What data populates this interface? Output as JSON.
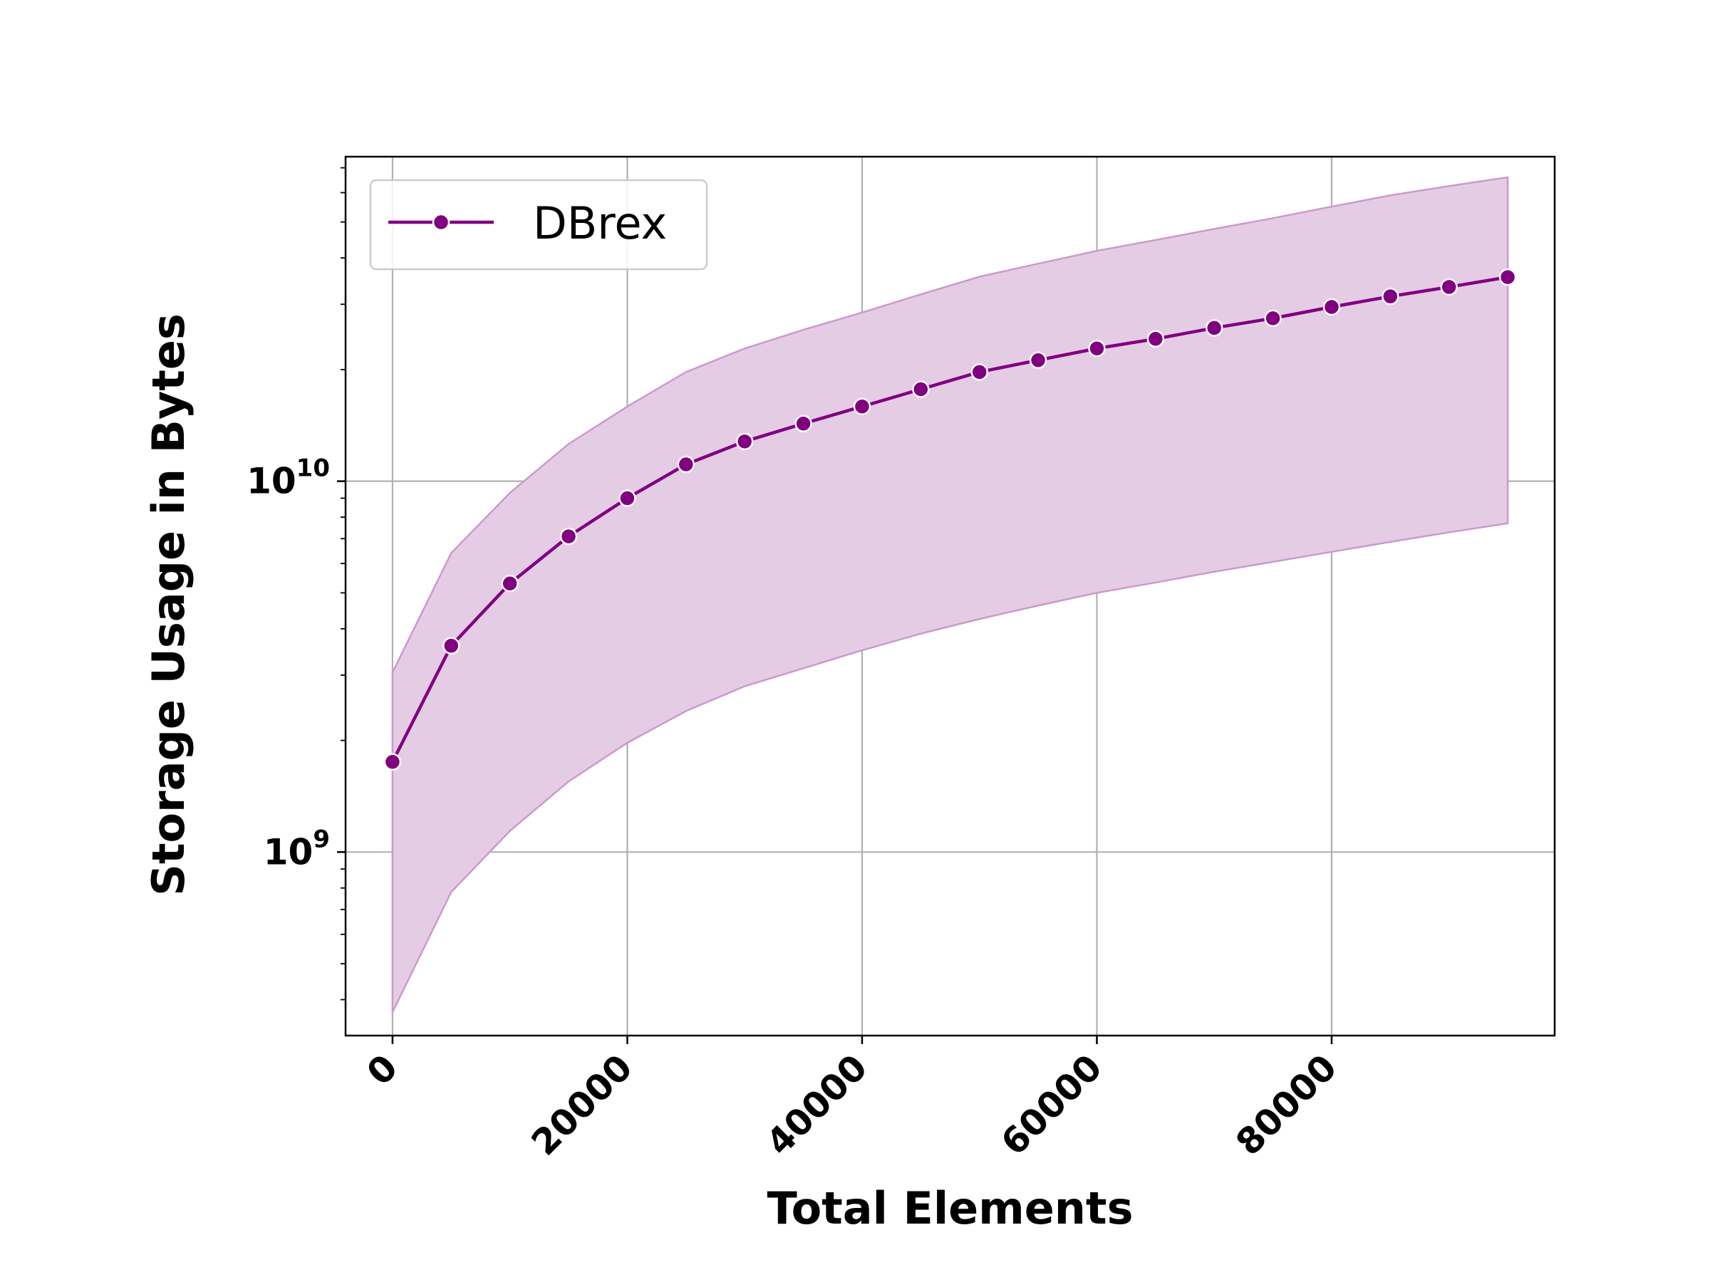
{
  "chart_data": {
    "type": "line",
    "xlabel": "Total Elements",
    "ylabel": "Storage Usage in Bytes",
    "xlim": [
      -4000,
      99000
    ],
    "ylim": [
      320000000,
      75000000000
    ],
    "yscale": "log",
    "grid": true,
    "legend_position": "top-left",
    "x_ticks": [
      {
        "value": 0,
        "label": "0"
      },
      {
        "value": 20000,
        "label": "20000"
      },
      {
        "value": 40000,
        "label": "40000"
      },
      {
        "value": 60000,
        "label": "60000"
      },
      {
        "value": 80000,
        "label": "80000"
      }
    ],
    "y_ticks": [
      {
        "value": 1000000000,
        "base": "10",
        "exp": "9"
      },
      {
        "value": 10000000000,
        "base": "10",
        "exp": "10"
      }
    ],
    "series": [
      {
        "name": "DBrex",
        "color": "#800080",
        "band_color": "#e5cce5",
        "band_edge_color": "#cc99cc",
        "x": [
          0,
          5000,
          10000,
          15000,
          20000,
          25000,
          30000,
          35000,
          40000,
          45000,
          50000,
          55000,
          60000,
          65000,
          70000,
          75000,
          80000,
          85000,
          90000,
          95000
        ],
        "y": [
          1750000000,
          3600000000,
          5300000000,
          7100000000,
          9000000000,
          11100000000,
          12800000000,
          14300000000,
          15900000000,
          17700000000,
          19700000000,
          21200000000,
          22800000000,
          24200000000,
          25900000000,
          27500000000,
          29500000000,
          31500000000,
          33400000000,
          35500000000
        ],
        "lower": [
          370000000,
          780000000,
          1140000000,
          1550000000,
          1970000000,
          2400000000,
          2800000000,
          3130000000,
          3500000000,
          3880000000,
          4250000000,
          4620000000,
          5000000000,
          5330000000,
          5700000000,
          6060000000,
          6450000000,
          6860000000,
          7280000000,
          7700000000
        ],
        "upper": [
          3050000000,
          6400000000,
          9300000000,
          12600000000,
          15900000000,
          19700000000,
          22800000000,
          25600000000,
          28500000000,
          31900000000,
          35600000000,
          38600000000,
          41800000000,
          44700000000,
          47900000000,
          51200000000,
          55000000000,
          59000000000,
          62500000000,
          66000000000
        ]
      }
    ]
  }
}
